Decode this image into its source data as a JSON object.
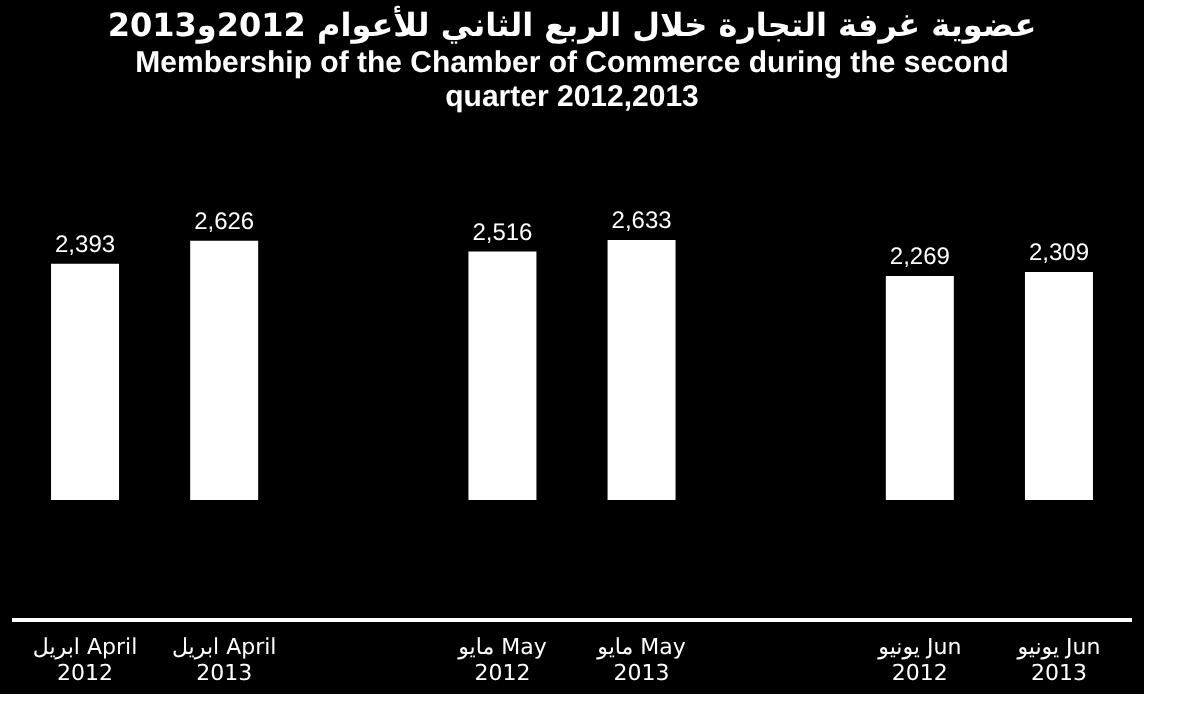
{
  "chart_data": {
    "type": "bar",
    "title": "عضوية غرفة التجارة خلال الربع الثاني للأعوام 2012و2013",
    "subtitle": "Membership of the Chamber of Commerce during the second quarter 2012,2013",
    "categories": [
      "ابريل April\n2012",
      "ابريل April\n2013",
      null,
      "مايو May\n2012",
      "مايو May\n2013",
      null,
      "يونيو Jun\n2012",
      "يونيو Jun\n2013"
    ],
    "values": [
      2393,
      2626,
      null,
      2516,
      2633,
      null,
      2269,
      2309
    ],
    "color": "#ffffff",
    "value_labels": [
      "2,393",
      "2,626",
      null,
      "2,516",
      "2,633",
      null,
      "2,269",
      "2,309"
    ]
  }
}
